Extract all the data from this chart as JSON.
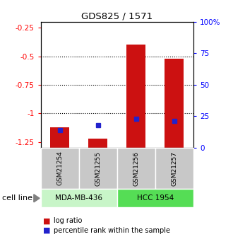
{
  "title": "GDS825 / 1571",
  "samples": [
    "GSM21254",
    "GSM21255",
    "GSM21256",
    "GSM21257"
  ],
  "log_ratios": [
    -1.12,
    -1.22,
    -0.4,
    -0.52
  ],
  "percentile_ranks": [
    14,
    18,
    23,
    21
  ],
  "ylim_left": [
    -1.3,
    -0.2
  ],
  "ylim_right": [
    0,
    100
  ],
  "yticks_left": [
    -1.25,
    -1.0,
    -0.75,
    -0.5,
    -0.25
  ],
  "yticks_right": [
    0,
    25,
    50,
    75,
    100
  ],
  "ytick_labels_left": [
    "-1.25",
    "-1",
    "-0.75",
    "-0.5",
    "-0.25"
  ],
  "ytick_labels_right": [
    "0",
    "25",
    "50",
    "75",
    "100%"
  ],
  "cell_lines": [
    "MDA-MB-436",
    "HCC 1954"
  ],
  "cell_line_spans": [
    [
      0,
      2
    ],
    [
      2,
      4
    ]
  ],
  "cell_line_colors": [
    "#c8f5c8",
    "#55dd55"
  ],
  "bar_color": "#cc1111",
  "percentile_color": "#2222cc",
  "sample_bg_color": "#c8c8c8",
  "bar_width": 0.5,
  "dotted_yticks_lr": [
    -0.5,
    -0.75,
    -1.0
  ],
  "legend_red_label": "log ratio",
  "legend_blue_label": "percentile rank within the sample"
}
